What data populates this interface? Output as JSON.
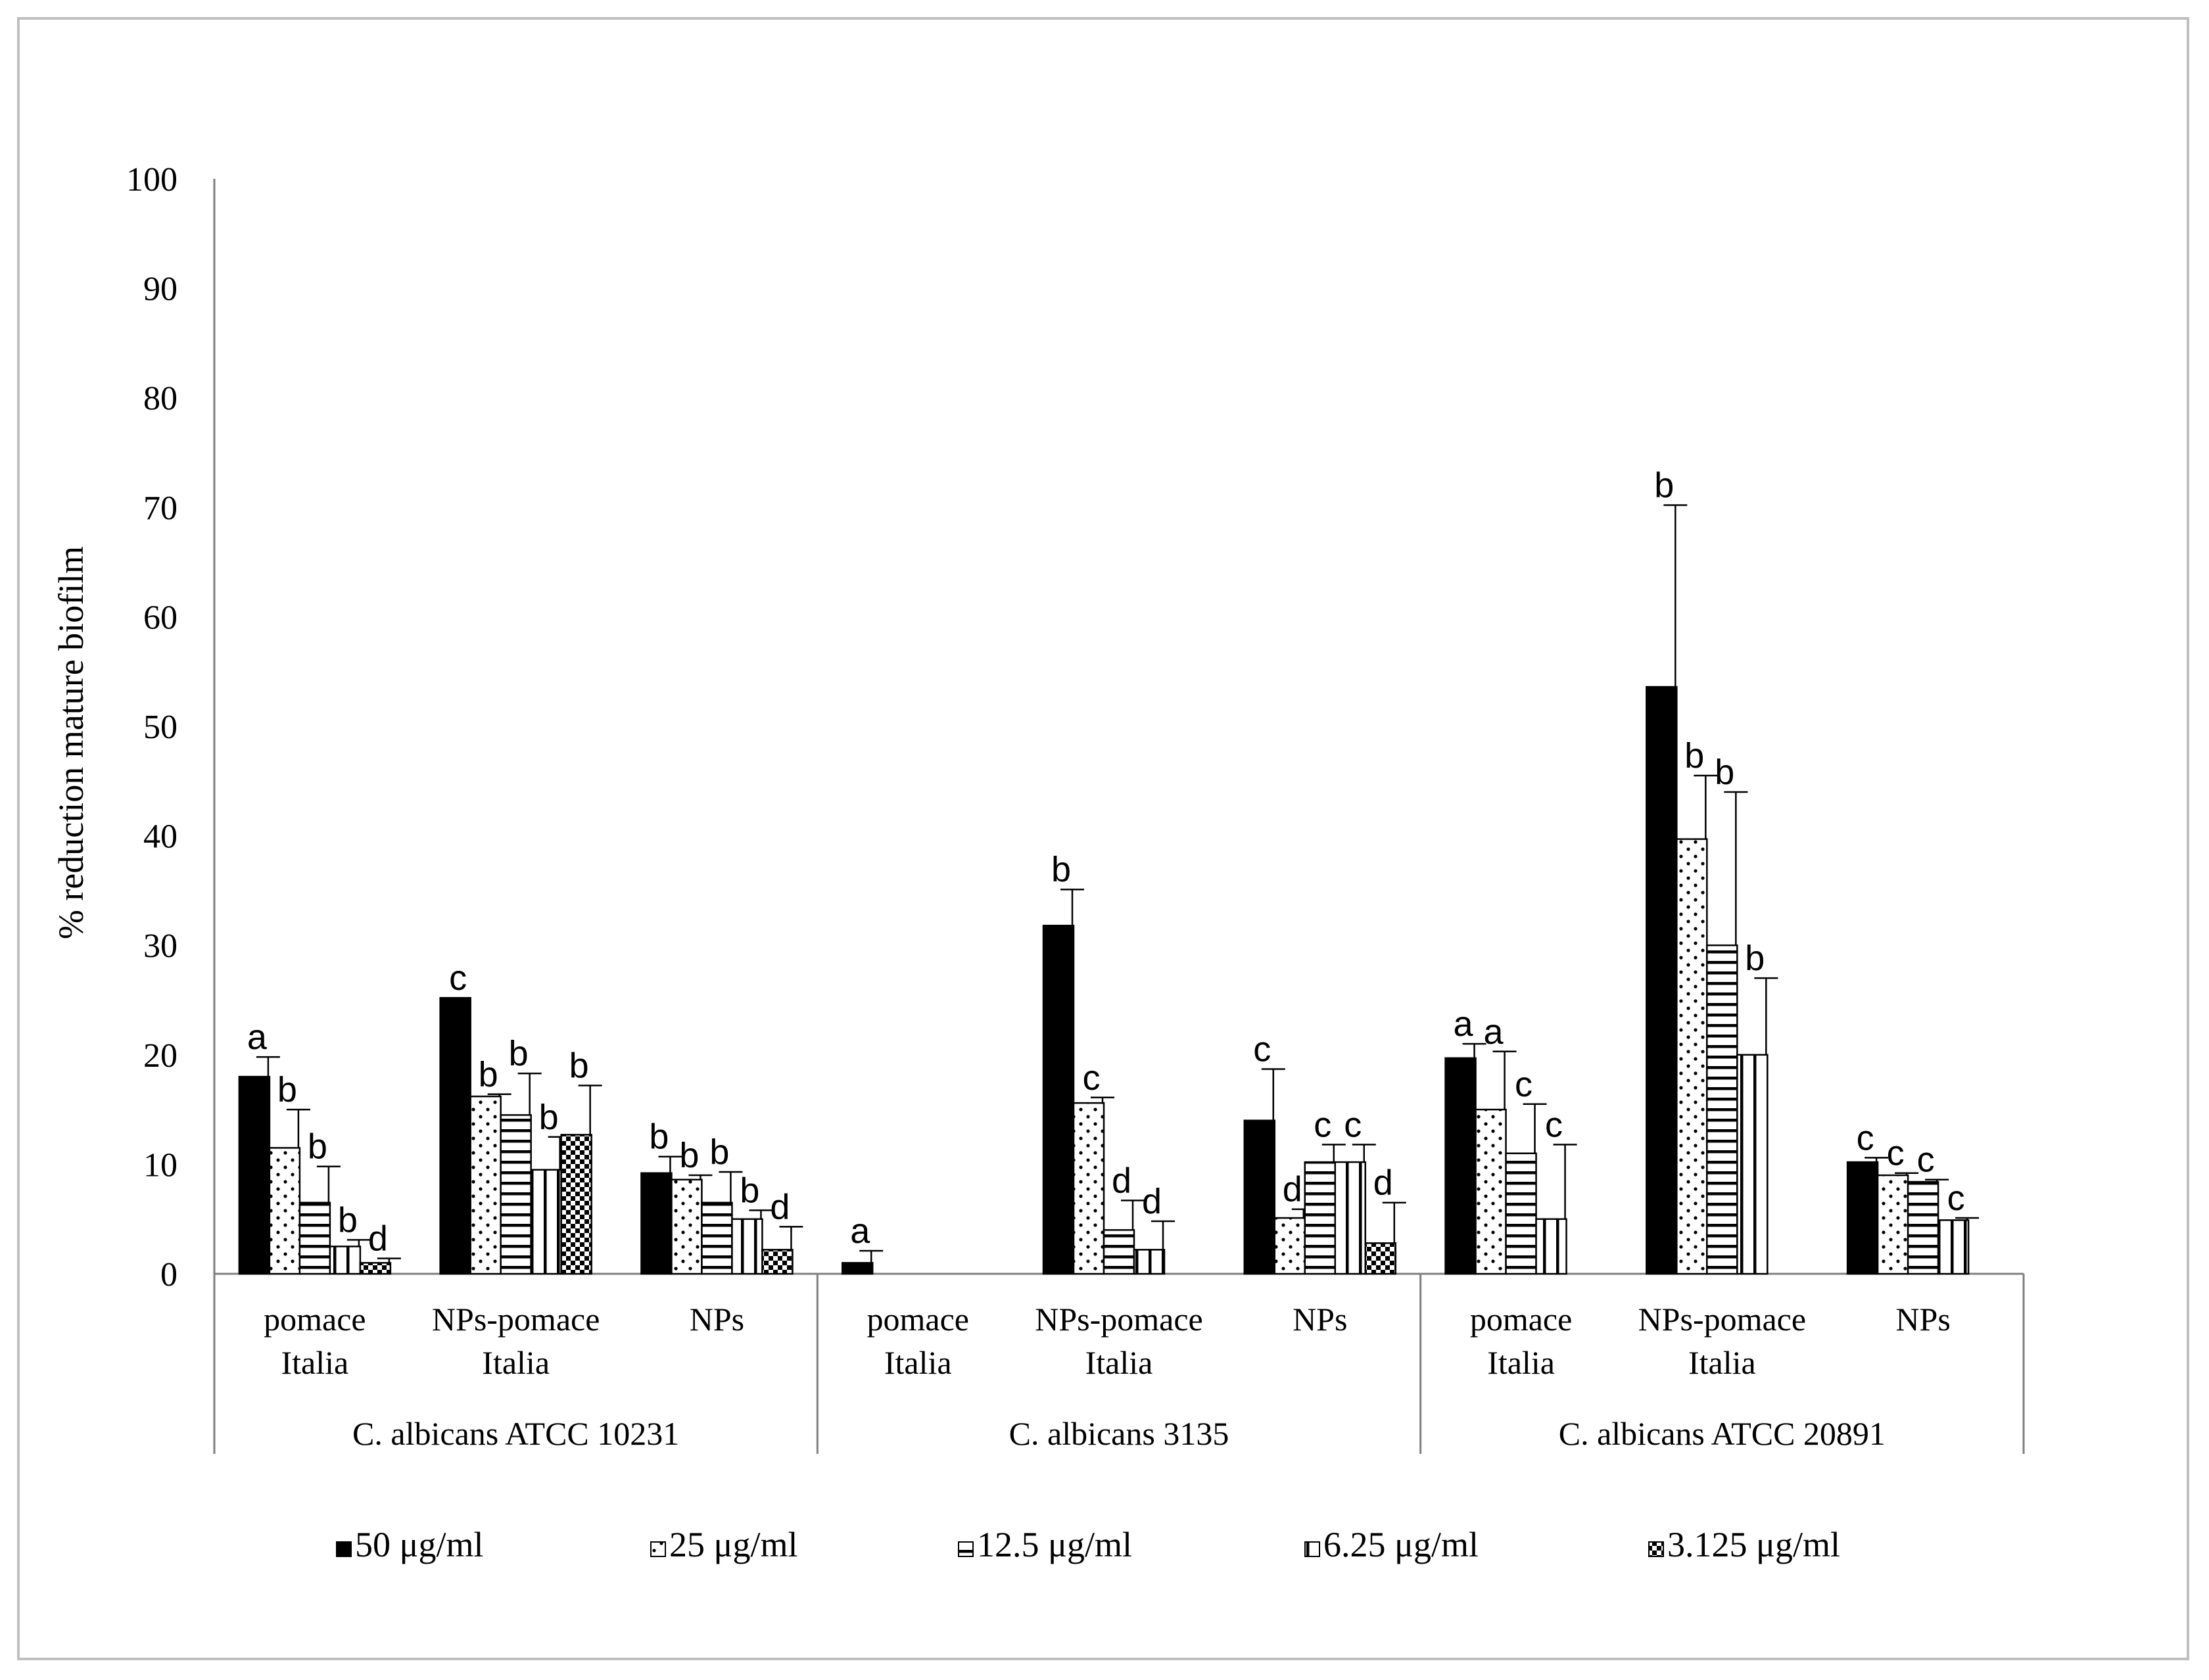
{
  "chart_data": {
    "type": "bar",
    "title": "",
    "xlabel": "",
    "ylabel": "% reduction mature biofilm",
    "ylim": [
      0,
      100
    ],
    "yticks": [
      "0",
      "10",
      "20",
      "30",
      "40",
      "50",
      "60",
      "70",
      "80",
      "90",
      "100"
    ],
    "grid": false,
    "legend_position": "bottom",
    "series": [
      {
        "name": "50 μg/ml",
        "pattern": "solid"
      },
      {
        "name": "25 μg/ml",
        "pattern": "dots"
      },
      {
        "name": "12.5 μg/ml",
        "pattern": "hlines"
      },
      {
        "name": "6.25 μg/ml",
        "pattern": "vlines"
      },
      {
        "name": "3.125  μg/ml",
        "pattern": "checker"
      }
    ],
    "strains": [
      {
        "name": "C. albicans ATCC 10231",
        "categories": [
          {
            "label1": "pomace",
            "label2": "Italia",
            "values": [
              18,
              11.5,
              6.5,
              2.5,
              1
            ],
            "errors": [
              1.8,
              3.5,
              3.3,
              0.6,
              0.4
            ],
            "letters": [
              "a",
              "b",
              "b",
              "b",
              "d"
            ]
          },
          {
            "label1": "NPs-pomace",
            "label2": "Italia",
            "values": [
              25.2,
              16.2,
              14.5,
              9.5,
              12.7
            ],
            "errors": [
              0,
              0.2,
              3.8,
              3,
              4.5
            ],
            "letters": [
              "c",
              "b",
              "b",
              "b",
              "b"
            ]
          },
          {
            "label1": "NPs",
            "label2": "",
            "values": [
              9.2,
              8.6,
              6.5,
              5,
              2.2
            ],
            "errors": [
              1.5,
              0.4,
              2.8,
              0.8,
              2.1
            ],
            "letters": [
              "b",
              "b",
              "b",
              "b",
              "d"
            ]
          }
        ]
      },
      {
        "name": "C. albicans 3135",
        "categories": [
          {
            "label1": "pomace",
            "label2": "Italia",
            "values": [
              1,
              null,
              null,
              null,
              null
            ],
            "errors": [
              1.1,
              null,
              null,
              null,
              null
            ],
            "letters": [
              "a",
              "",
              "",
              "",
              ""
            ]
          },
          {
            "label1": "NPs-pomace",
            "label2": "Italia",
            "values": [
              31.8,
              15.6,
              4,
              2.2,
              null
            ],
            "errors": [
              3.3,
              0.5,
              2.7,
              2.6,
              null
            ],
            "letters": [
              "b",
              "c",
              "d",
              "d",
              ""
            ]
          },
          {
            "label1": "NPs",
            "label2": "",
            "values": [
              14,
              5.1,
              10.2,
              10.2,
              2.8
            ],
            "errors": [
              4.7,
              0.8,
              1.6,
              1.6,
              3.7
            ],
            "letters": [
              "c",
              "d",
              "c",
              "c",
              "d"
            ]
          }
        ]
      },
      {
        "name": "C. albicans ATCC 20891",
        "categories": [
          {
            "label1": "pomace",
            "label2": "Italia",
            "values": [
              19.7,
              15,
              11,
              5,
              null
            ],
            "errors": [
              1.3,
              5.3,
              4.5,
              6.8,
              null
            ],
            "letters": [
              "a",
              "a",
              "c",
              "c",
              ""
            ]
          },
          {
            "label1": "NPs-pomace",
            "label2": "Italia",
            "values": [
              53.6,
              39.7,
              30,
              20,
              null
            ],
            "errors": [
              16.6,
              5.8,
              14,
              7,
              null
            ],
            "letters": [
              "b",
              "b",
              "b",
              "b",
              ""
            ]
          },
          {
            "label1": "NPs",
            "label2": "",
            "values": [
              10.2,
              9,
              8.4,
              4.9,
              null
            ],
            "errors": [
              0.4,
              0.2,
              0.2,
              0.2,
              null
            ],
            "letters": [
              "c",
              "c",
              "c",
              "c",
              ""
            ]
          }
        ]
      }
    ]
  }
}
